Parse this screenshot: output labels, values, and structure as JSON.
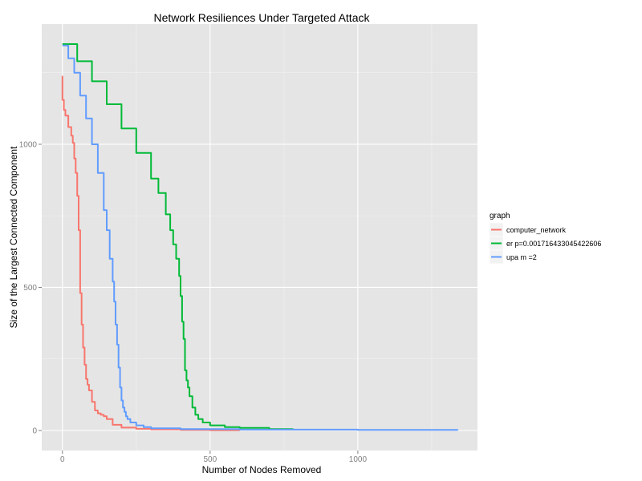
{
  "chart_data": {
    "type": "line",
    "title": "Network Resiliences Under Targeted Attack",
    "xlabel": "Number of Nodes Removed",
    "ylabel": "Size of the Largest Connected Component",
    "xlim": [
      -70,
      1405
    ],
    "ylim": [
      -70,
      1420
    ],
    "x_ticks": [
      0,
      500,
      1000
    ],
    "y_ticks": [
      0,
      500,
      1000
    ],
    "grid": true,
    "legend": {
      "title": "graph",
      "position": "right"
    },
    "colors": {
      "panel": "#e5e5e5",
      "grid_major": "#ffffff",
      "grid_minor": "#f2f2f2"
    },
    "series": [
      {
        "name": "computer_network",
        "color": "#f8766d",
        "x": [
          0,
          0,
          5,
          10,
          20,
          30,
          35,
          40,
          45,
          50,
          55,
          60,
          65,
          70,
          75,
          80,
          85,
          90,
          100,
          110,
          120,
          130,
          140,
          150,
          170,
          200,
          250,
          300,
          400,
          500,
          600
        ],
        "y": [
          1239,
          1155,
          1120,
          1100,
          1060,
          1030,
          1005,
          950,
          900,
          820,
          700,
          480,
          370,
          290,
          230,
          180,
          160,
          140,
          100,
          70,
          60,
          55,
          50,
          40,
          20,
          10,
          6,
          4,
          2,
          1,
          0
        ]
      },
      {
        "name": "er p=0.00171643304542260​6",
        "color": "#00ba38",
        "x": [
          0,
          50,
          100,
          150,
          200,
          250,
          300,
          325,
          350,
          365,
          375,
          385,
          395,
          400,
          405,
          410,
          415,
          420,
          425,
          430,
          440,
          450,
          460,
          475,
          500,
          550,
          600,
          700,
          780
        ],
        "y": [
          1350,
          1290,
          1220,
          1140,
          1055,
          970,
          880,
          830,
          755,
          700,
          650,
          600,
          540,
          470,
          380,
          320,
          210,
          175,
          150,
          120,
          80,
          55,
          40,
          28,
          18,
          12,
          9,
          5,
          3
        ]
      },
      {
        "name": "upa m =2",
        "color": "#619cff",
        "x": [
          0,
          20,
          40,
          60,
          80,
          100,
          120,
          140,
          150,
          160,
          170,
          175,
          180,
          185,
          190,
          195,
          200,
          205,
          210,
          215,
          220,
          230,
          250,
          275,
          300,
          400,
          600,
          1000,
          1338
        ],
        "y": [
          1345,
          1300,
          1250,
          1170,
          1090,
          1000,
          900,
          770,
          700,
          600,
          520,
          450,
          370,
          300,
          220,
          150,
          105,
          80,
          65,
          50,
          40,
          28,
          18,
          12,
          8,
          5,
          3,
          2,
          1
        ]
      }
    ]
  }
}
